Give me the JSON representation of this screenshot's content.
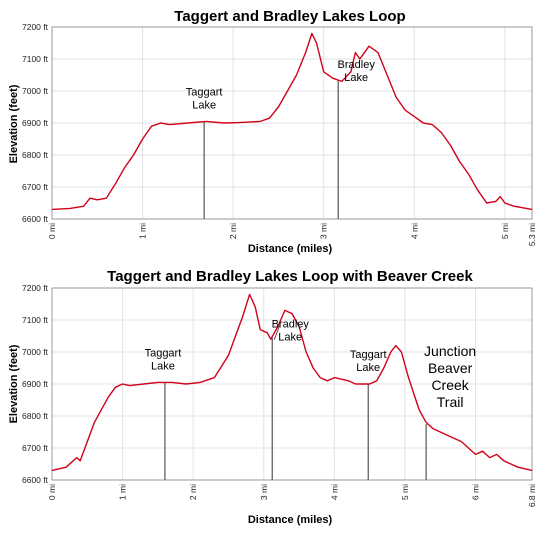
{
  "chart_data": [
    {
      "type": "line",
      "title": "Taggert and Bradley Lakes Loop",
      "xlabel": "Distance (miles)",
      "ylabel": "Elevation (feet)",
      "xlim": [
        0,
        5.3
      ],
      "ylim": [
        6600,
        7200
      ],
      "x_ticks": [
        {
          "value": 0,
          "label": "0 mi"
        },
        {
          "value": 1,
          "label": "1 mi"
        },
        {
          "value": 2,
          "label": "2 mi"
        },
        {
          "value": 3,
          "label": "3 mi"
        },
        {
          "value": 4,
          "label": "4 mi"
        },
        {
          "value": 5,
          "label": "5 mi"
        },
        {
          "value": 5.3,
          "label": "5.3 mi"
        }
      ],
      "y_ticks": [
        {
          "value": 6600,
          "label": "6600 ft"
        },
        {
          "value": 6700,
          "label": "6700 ft"
        },
        {
          "value": 6800,
          "label": "6800 ft"
        },
        {
          "value": 6900,
          "label": "6900 ft"
        },
        {
          "value": 7000,
          "label": "7000 ft"
        },
        {
          "value": 7100,
          "label": "7100 ft"
        },
        {
          "value": 7200,
          "label": "7200 ft"
        }
      ],
      "grid": true,
      "series": [
        {
          "color": "#d0021b",
          "points": [
            [
              0,
              6630
            ],
            [
              0.2,
              6633
            ],
            [
              0.35,
              6640
            ],
            [
              0.42,
              6665
            ],
            [
              0.5,
              6660
            ],
            [
              0.6,
              6665
            ],
            [
              0.7,
              6710
            ],
            [
              0.8,
              6760
            ],
            [
              0.9,
              6800
            ],
            [
              1.0,
              6850
            ],
            [
              1.1,
              6890
            ],
            [
              1.2,
              6900
            ],
            [
              1.3,
              6895
            ],
            [
              1.5,
              6900
            ],
            [
              1.7,
              6905
            ],
            [
              1.9,
              6900
            ],
            [
              2.1,
              6902
            ],
            [
              2.3,
              6905
            ],
            [
              2.4,
              6915
            ],
            [
              2.5,
              6950
            ],
            [
              2.6,
              7000
            ],
            [
              2.7,
              7050
            ],
            [
              2.8,
              7120
            ],
            [
              2.87,
              7180
            ],
            [
              2.92,
              7150
            ],
            [
              3.0,
              7060
            ],
            [
              3.1,
              7040
            ],
            [
              3.2,
              7030
            ],
            [
              3.3,
              7060
            ],
            [
              3.35,
              7120
            ],
            [
              3.4,
              7100
            ],
            [
              3.5,
              7140
            ],
            [
              3.6,
              7120
            ],
            [
              3.7,
              7050
            ],
            [
              3.8,
              6980
            ],
            [
              3.9,
              6940
            ],
            [
              4.0,
              6920
            ],
            [
              4.1,
              6900
            ],
            [
              4.2,
              6895
            ],
            [
              4.3,
              6870
            ],
            [
              4.4,
              6830
            ],
            [
              4.5,
              6780
            ],
            [
              4.6,
              6740
            ],
            [
              4.7,
              6690
            ],
            [
              4.8,
              6650
            ],
            [
              4.9,
              6655
            ],
            [
              4.95,
              6670
            ],
            [
              5.0,
              6650
            ],
            [
              5.1,
              6640
            ],
            [
              5.3,
              6630
            ]
          ]
        }
      ],
      "annotations": [
        {
          "lines": [
            "Taggart",
            "Lake"
          ],
          "x": 1.68,
          "y": 6905
        },
        {
          "lines": [
            "Bradley",
            "Lake"
          ],
          "x": 3.16,
          "y": 7035
        }
      ]
    },
    {
      "type": "line",
      "title": "Taggert and Bradley Lakes Loop with Beaver Creek",
      "xlabel": "Distance (miles)",
      "ylabel": "Elevation (feet)",
      "xlim": [
        0,
        6.8
      ],
      "ylim": [
        6600,
        7200
      ],
      "x_ticks": [
        {
          "value": 0,
          "label": "0 mi"
        },
        {
          "value": 1,
          "label": "1 mi"
        },
        {
          "value": 2,
          "label": "2 mi"
        },
        {
          "value": 3,
          "label": "3 mi"
        },
        {
          "value": 4,
          "label": "4 mi"
        },
        {
          "value": 5,
          "label": "5 mi"
        },
        {
          "value": 6,
          "label": "6 mi"
        },
        {
          "value": 6.8,
          "label": "6.8 mi"
        }
      ],
      "y_ticks": [
        {
          "value": 6600,
          "label": "6600 ft"
        },
        {
          "value": 6700,
          "label": "6700 ft"
        },
        {
          "value": 6800,
          "label": "6800 ft"
        },
        {
          "value": 6900,
          "label": "6900 ft"
        },
        {
          "value": 7000,
          "label": "7000 ft"
        },
        {
          "value": 7100,
          "label": "7100 ft"
        },
        {
          "value": 7200,
          "label": "7200 ft"
        }
      ],
      "grid": true,
      "series": [
        {
          "color": "#d0021b",
          "points": [
            [
              0,
              6630
            ],
            [
              0.2,
              6640
            ],
            [
              0.3,
              6660
            ],
            [
              0.35,
              6670
            ],
            [
              0.4,
              6660
            ],
            [
              0.5,
              6720
            ],
            [
              0.6,
              6780
            ],
            [
              0.7,
              6820
            ],
            [
              0.8,
              6860
            ],
            [
              0.9,
              6890
            ],
            [
              1.0,
              6900
            ],
            [
              1.1,
              6895
            ],
            [
              1.3,
              6900
            ],
            [
              1.5,
              6905
            ],
            [
              1.7,
              6905
            ],
            [
              1.9,
              6900
            ],
            [
              2.1,
              6905
            ],
            [
              2.3,
              6920
            ],
            [
              2.5,
              6990
            ],
            [
              2.6,
              7050
            ],
            [
              2.7,
              7110
            ],
            [
              2.8,
              7180
            ],
            [
              2.88,
              7140
            ],
            [
              2.95,
              7070
            ],
            [
              3.05,
              7060
            ],
            [
              3.1,
              7040
            ],
            [
              3.2,
              7080
            ],
            [
              3.3,
              7130
            ],
            [
              3.4,
              7120
            ],
            [
              3.5,
              7080
            ],
            [
              3.6,
              7000
            ],
            [
              3.7,
              6950
            ],
            [
              3.8,
              6920
            ],
            [
              3.9,
              6910
            ],
            [
              4.0,
              6920
            ],
            [
              4.2,
              6910
            ],
            [
              4.3,
              6900
            ],
            [
              4.5,
              6900
            ],
            [
              4.6,
              6910
            ],
            [
              4.7,
              6950
            ],
            [
              4.8,
              7000
            ],
            [
              4.87,
              7020
            ],
            [
              4.95,
              7000
            ],
            [
              5.05,
              6920
            ],
            [
              5.2,
              6820
            ],
            [
              5.3,
              6780
            ],
            [
              5.4,
              6760
            ],
            [
              5.6,
              6740
            ],
            [
              5.8,
              6720
            ],
            [
              6.0,
              6680
            ],
            [
              6.1,
              6690
            ],
            [
              6.2,
              6670
            ],
            [
              6.3,
              6680
            ],
            [
              6.4,
              6660
            ],
            [
              6.5,
              6650
            ],
            [
              6.6,
              6640
            ],
            [
              6.8,
              6630
            ]
          ]
        }
      ],
      "annotations": [
        {
          "lines": [
            "Taggart",
            "Lake"
          ],
          "x": 1.6,
          "y": 6905
        },
        {
          "lines": [
            "Bradley",
            "Lake"
          ],
          "x": 3.12,
          "y": 7045
        },
        {
          "lines": [
            "Taggart",
            "Lake"
          ],
          "x": 4.48,
          "y": 6900
        },
        {
          "lines": [
            "Junction",
            "Beaver",
            "Creek",
            "Trail"
          ],
          "x": 5.3,
          "y": 6775
        }
      ]
    }
  ]
}
